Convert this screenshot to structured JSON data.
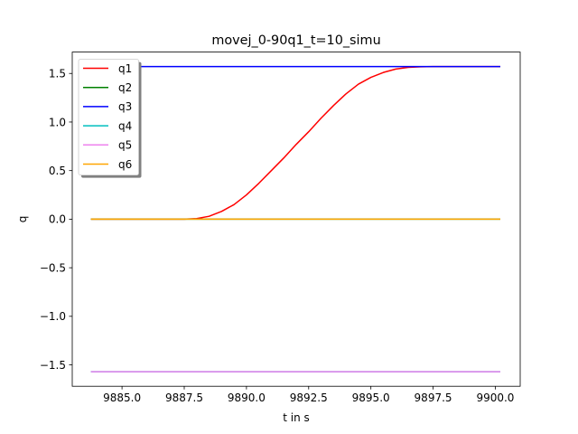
{
  "chart_data": {
    "type": "line",
    "title": "movej_0-90q1_t=10_simu",
    "xlabel": "t in s",
    "ylabel": "q",
    "xlim": [
      9883.0,
      9901.0
    ],
    "ylim": [
      -1.72,
      1.72
    ],
    "x_ticks": [
      9885.0,
      9887.5,
      9890.0,
      9892.5,
      9895.0,
      9897.5,
      9900.0
    ],
    "x_tick_labels": [
      "9885.0",
      "9887.5",
      "9890.0",
      "9892.5",
      "9895.0",
      "9897.5",
      "9900.0"
    ],
    "y_ticks": [
      -1.5,
      -1.0,
      -0.5,
      0.0,
      0.5,
      1.0,
      1.5
    ],
    "y_tick_labels": [
      "−1.5",
      "−1.0",
      "−0.5",
      "0.0",
      "0.5",
      "1.0",
      "1.5"
    ],
    "grid": false,
    "legend_position": "upper-left",
    "series": [
      {
        "name": "q1",
        "color": "#ff0000",
        "x": [
          9883.75,
          9887.5,
          9888.0,
          9888.5,
          9889.0,
          9889.5,
          9890.0,
          9890.5,
          9891.0,
          9891.5,
          9892.0,
          9892.5,
          9893.0,
          9893.5,
          9894.0,
          9894.5,
          9895.0,
          9895.5,
          9896.0,
          9896.5,
          9897.0,
          9897.5,
          9898.0,
          9900.2
        ],
        "values": [
          0.0,
          0.0,
          0.006,
          0.03,
          0.08,
          0.15,
          0.25,
          0.37,
          0.5,
          0.63,
          0.77,
          0.9,
          1.04,
          1.17,
          1.29,
          1.39,
          1.46,
          1.51,
          1.545,
          1.563,
          1.569,
          1.5708,
          1.5708,
          1.5708
        ]
      },
      {
        "name": "q2",
        "color": "#008000",
        "x": [
          9883.75,
          9900.2
        ],
        "values": [
          0.0,
          0.0
        ]
      },
      {
        "name": "q3",
        "color": "#0000ff",
        "x": [
          9883.75,
          9900.2
        ],
        "values": [
          1.5708,
          1.5708
        ]
      },
      {
        "name": "q4",
        "color": "#00bfbf",
        "x": [
          9883.75,
          9900.2
        ],
        "values": [
          -1.5708,
          -1.5708
        ]
      },
      {
        "name": "q5",
        "color": "#ee82ee",
        "x": [
          9883.75,
          9900.2
        ],
        "values": [
          -1.5708,
          -1.5708
        ]
      },
      {
        "name": "q6",
        "color": "#ffa500",
        "x": [
          9883.75,
          9900.2
        ],
        "values": [
          0.0,
          0.0
        ]
      }
    ]
  }
}
